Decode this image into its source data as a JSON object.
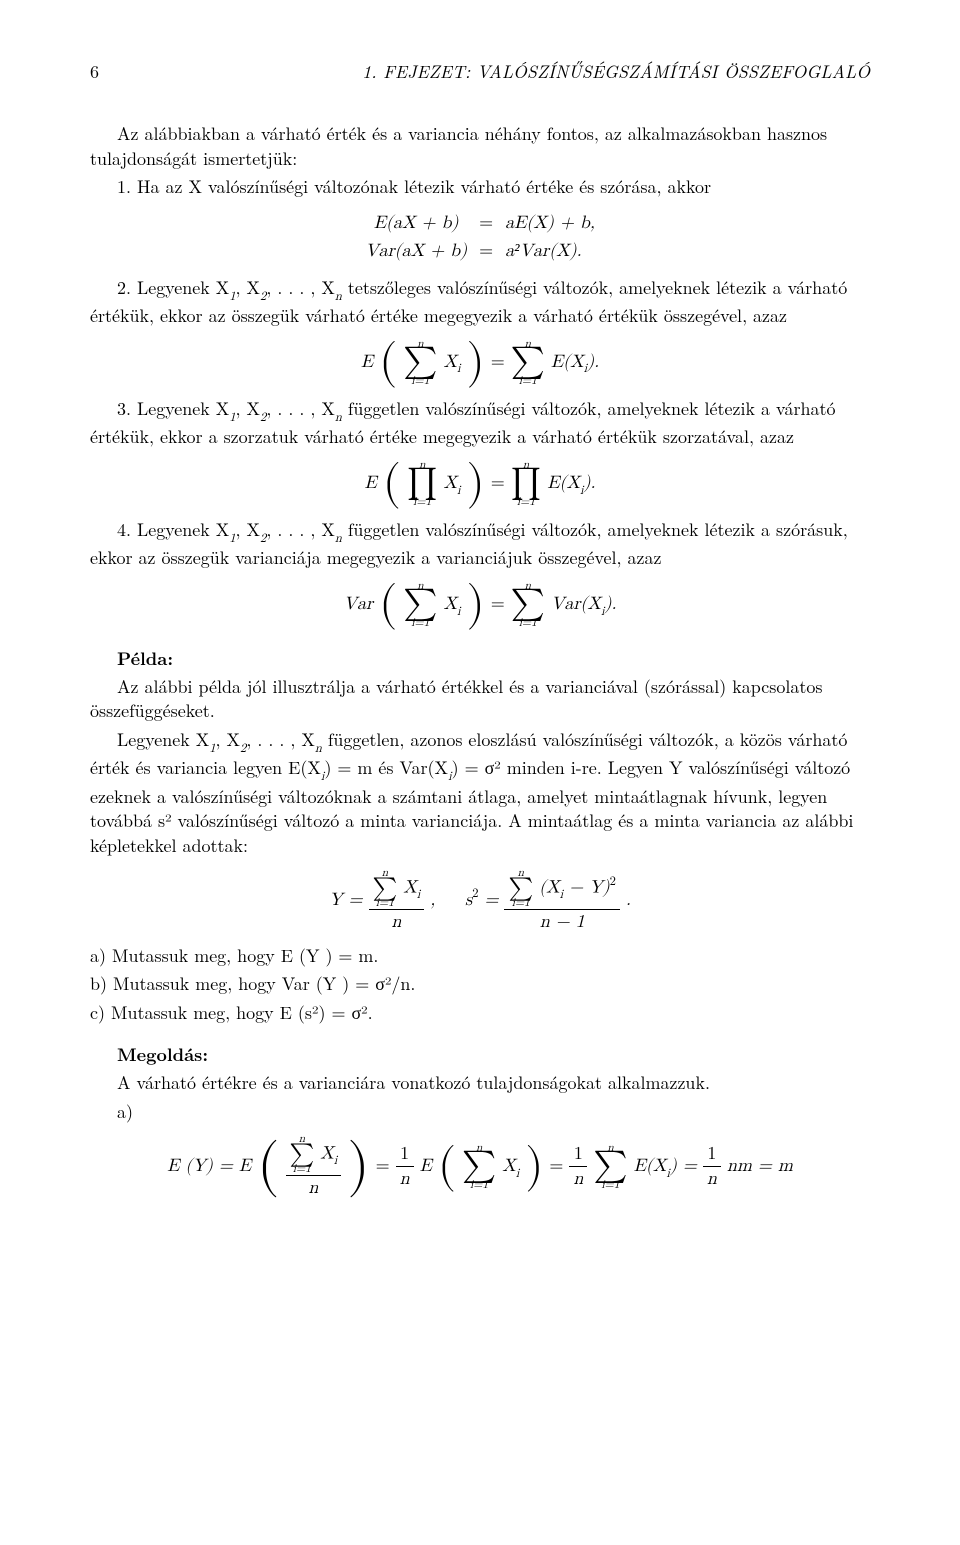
{
  "header": {
    "page_number": "6",
    "chapter_title": "1. FEJEZET: VALÓSZÍNŰSÉGSZÁMÍTÁSI ÖSSZEFOGLALÓ"
  },
  "intro": "Az alábbiakban a várható érték és a variancia néhány fontos, az alkalmazásokban hasznos tulajdonságát ismertetjük:",
  "prop1_lead": "1. Ha az X valószínűségi változónak létezik várható értéke és szórása, akkor",
  "eq1_lhs1": "E(aX + b)",
  "eq1_eq": "=",
  "eq1_rhs1": "aE(X) + b,",
  "eq1_lhs2": "Var(aX + b)",
  "eq1_rhs2": "a²Var(X).",
  "prop2_a": "2. Legyenek X",
  "prop2_b": ", X",
  "prop2_c": ", . . . , X",
  "prop2_d": " tetszőleges valószínűségi változók, amelyeknek létezik a várható értékük, ekkor az összegük várható értéke megegyezik a várható értékük összegével, azaz",
  "prop3_a": "3. Legyenek X",
  "prop3_d": " független valószínűségi változók, amelyeknek létezik a várható értékük, ekkor a szorzatuk várható értéke megegyezik a várható értékük szorzatával, azaz",
  "prop4_a": "4. Legyenek X",
  "prop4_d": " független valószínűségi változók, amelyeknek létezik a szórásuk, ekkor az összegük varianciája megegyezik a varianciájuk összegével, azaz",
  "pelda_label": "Példa:",
  "pelda_text": "Az alábbi példa jól illusztrálja a várható értékkel és a varianciával (szórással) kapcsolatos összefüggéseket.",
  "pelda_p2a": "Legyenek X",
  "pelda_p2b": " független, azonos eloszlású valószínűségi változók, a közös várható érték és variancia legyen E(X",
  "pelda_p2c": ") = m és Var(X",
  "pelda_p2d": ") = σ² minden i-re. Legyen Y valószínűségi változó ezeknek a valószínűségi változóknak a számtani átlaga, amelyet mintaátlagnak hívunk, legyen továbbá s² valószínűségi változó a minta varianciája. A mintaátlag és a minta variancia az alábbi képletekkel adottak:",
  "task_a": "a) Mutassuk meg, hogy E (Y ) = m.",
  "task_b": "b) Mutassuk meg, hogy Var (Y ) = σ²/n.",
  "task_c": "c) Mutassuk meg, hogy E (s²) = σ².",
  "megoldas_label": "Megoldás:",
  "megoldas_text": "A várható értékre és a varianciára vonatkozó tulajdonságokat alkalmazzuk.",
  "megoldas_a": "a)",
  "n": "n",
  "i1": "i=1",
  "E": "E",
  "Var": "Var",
  "Xi": "X",
  "i": "i",
  "one": "1",
  "two": "2"
}
